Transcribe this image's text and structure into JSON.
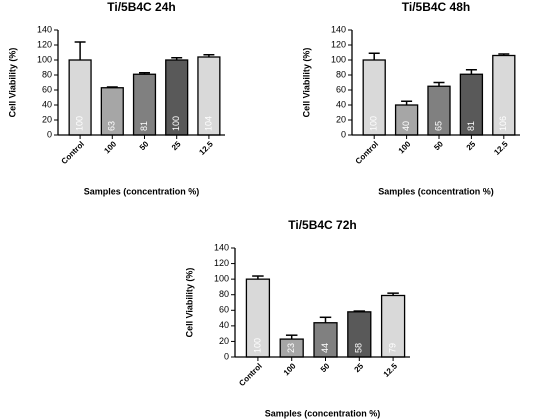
{
  "chart_data": [
    {
      "type": "bar",
      "title": "Ti/5B4C 24h",
      "y_label": "Cell Viability (%)",
      "x_label": "Samples (concentration %)",
      "categories": [
        "Control",
        "100",
        "50",
        "25",
        "12.5"
      ],
      "values": [
        100,
        63,
        81,
        100,
        104
      ],
      "errors": [
        24,
        1,
        2,
        3,
        3
      ],
      "colors": [
        "#d9d9d9",
        "#a6a6a6",
        "#808080",
        "#595959",
        "#d9d9d9"
      ],
      "ylim": [
        0,
        140
      ],
      "yticks": [
        0,
        20,
        40,
        60,
        80,
        100,
        120,
        140
      ]
    },
    {
      "type": "bar",
      "title": "Ti/5B4C 48h",
      "y_label": "Cell Viability (%)",
      "x_label": "Samples (concentration %)",
      "categories": [
        "Control",
        "100",
        "50",
        "25",
        "12.5"
      ],
      "values": [
        100,
        40,
        65,
        81,
        106
      ],
      "errors": [
        9,
        5,
        5,
        6,
        2
      ],
      "colors": [
        "#d9d9d9",
        "#a6a6a6",
        "#808080",
        "#595959",
        "#d9d9d9"
      ],
      "ylim": [
        0,
        140
      ],
      "yticks": [
        0,
        20,
        40,
        60,
        80,
        100,
        120,
        140
      ]
    },
    {
      "type": "bar",
      "title": "Ti/5B4C 72h",
      "y_label": "Cell Viability (%)",
      "x_label": "Samples (concentration %)",
      "categories": [
        "Control",
        "100",
        "50",
        "25",
        "12.5"
      ],
      "values": [
        100,
        23,
        44,
        58,
        79
      ],
      "errors": [
        4,
        5,
        7,
        1,
        3
      ],
      "colors": [
        "#d9d9d9",
        "#a6a6a6",
        "#808080",
        "#595959",
        "#d9d9d9"
      ],
      "ylim": [
        0,
        140
      ],
      "yticks": [
        0,
        20,
        40,
        60,
        80,
        100,
        120,
        140
      ]
    }
  ]
}
